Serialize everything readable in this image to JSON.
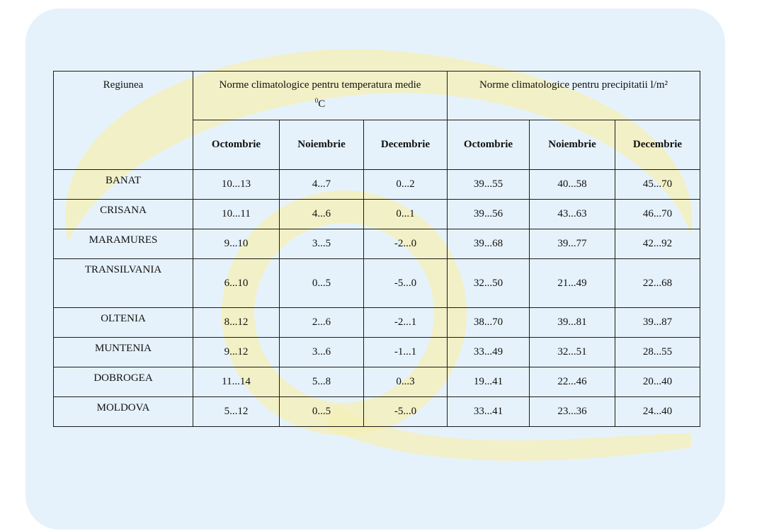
{
  "colors": {
    "panel_bg": "#e6f2fb",
    "watermark_yellow": "#f6efb4",
    "border": "#1a1a1a"
  },
  "table": {
    "header": {
      "region": "Regiunea",
      "temperature_title": "Norme climatologice pentru temperatura medie",
      "temperature_unit": "C",
      "temperature_unit_sup": "0",
      "precip_title": "Norme climatologice pentru precipitatii l/m²",
      "months": [
        "Octombrie",
        "Noiembrie",
        "Decembrie",
        "Octombrie",
        "Noiembrie",
        "Decembrie"
      ]
    },
    "rows": [
      {
        "region": "BANAT",
        "values": [
          "10...13",
          "4...7",
          "0...2",
          "39...55",
          "40...58",
          "45...70"
        ]
      },
      {
        "region": "CRISANA",
        "values": [
          "10...11",
          "4...6",
          "0...1",
          "39...56",
          "43...63",
          "46...70"
        ]
      },
      {
        "region": "MARAMURES",
        "values": [
          "9...10",
          "3...5",
          "-2...0",
          "39...68",
          "39...77",
          "42...92"
        ]
      },
      {
        "region": "TRANSILVANIA",
        "values": [
          "6...10",
          "0...5",
          "-5...0",
          "32...50",
          "21...49",
          "22...68"
        ]
      },
      {
        "region": "OLTENIA",
        "values": [
          "8...12",
          "2...6",
          "-2...1",
          "38...70",
          "39...81",
          "39...87"
        ]
      },
      {
        "region": "MUNTENIA",
        "values": [
          "9...12",
          "3...6",
          "-1...1",
          "33...49",
          "32...51",
          "28...55"
        ]
      },
      {
        "region": "DOBROGEA",
        "values": [
          "11...14",
          "5...8",
          "0...3",
          "19...41",
          "22...46",
          "20...40"
        ]
      },
      {
        "region": "MOLDOVA",
        "values": [
          "5...12",
          "0...5",
          "-5...0",
          "33...41",
          "23...36",
          "24...40"
        ]
      }
    ]
  }
}
